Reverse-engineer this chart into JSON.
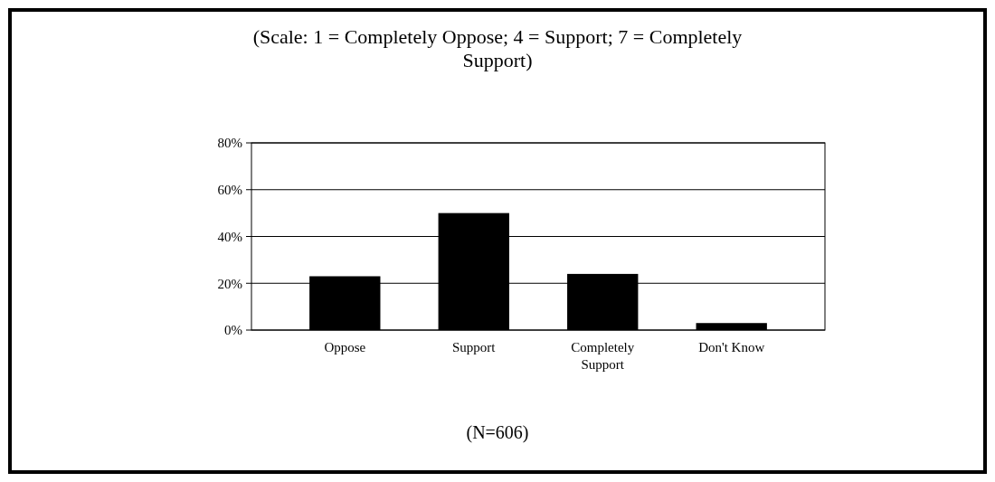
{
  "chart_data": {
    "type": "bar",
    "title": "(Scale: 1 = Completely Oppose; 4 = Support; 7 = Completely Support)",
    "categories": [
      "Oppose",
      "Support",
      "Completely Support",
      "Don't Know"
    ],
    "values": [
      23,
      50,
      24,
      3
    ],
    "color": "#000000",
    "ylim": [
      0,
      80
    ],
    "yticks": [
      {
        "value": 0,
        "label": "0%"
      },
      {
        "value": 20,
        "label": "20%"
      },
      {
        "value": 40,
        "label": "40%"
      },
      {
        "value": 60,
        "label": "60%"
      },
      {
        "value": 80,
        "label": "80%"
      }
    ],
    "grid": "y",
    "annotations": [
      "(N=606)"
    ]
  }
}
